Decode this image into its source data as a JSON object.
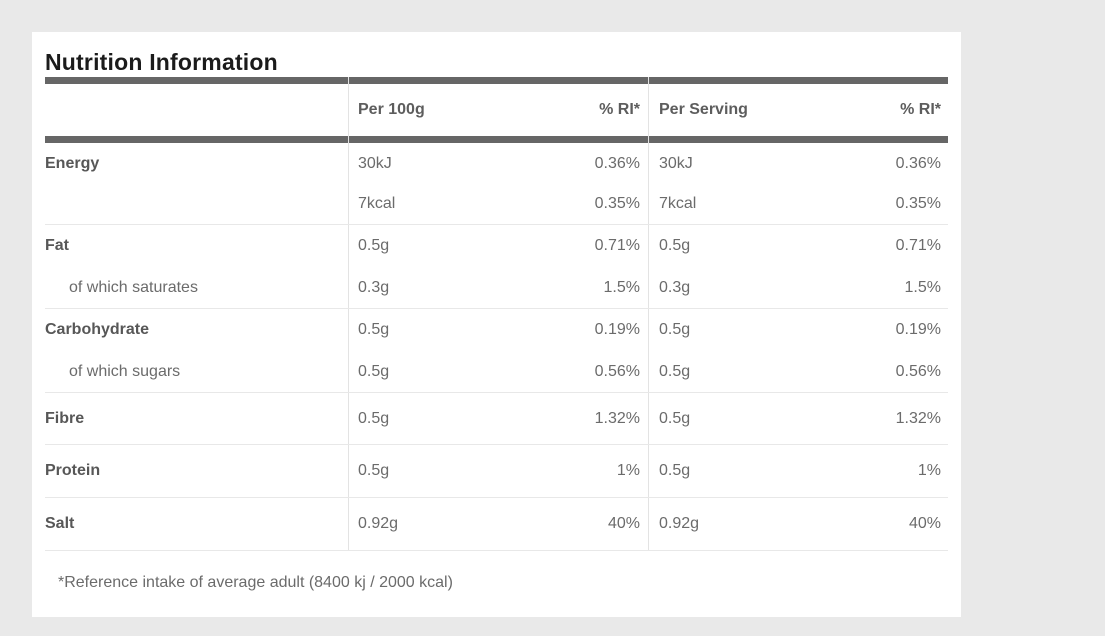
{
  "colors": {
    "page_background": "#e9e9e9",
    "card_background": "#ffffff",
    "divider_bar": "#666666",
    "row_border": "#e8e8e8",
    "title_text": "#1b1b1b",
    "label_text": "#575757",
    "value_text": "#6b6b6b"
  },
  "title": "Nutrition Information",
  "table": {
    "columns": [
      "Per 100g",
      "% RI*",
      "Per Serving",
      "% RI*"
    ],
    "rows": [
      {
        "label": "Energy",
        "per100g": "30kJ",
        "ri_100g": "0.36%",
        "per_serving": "30kJ",
        "ri_serving": "0.36%"
      },
      {
        "label": "",
        "per100g": "7kcal",
        "ri_100g": "0.35%",
        "per_serving": "7kcal",
        "ri_serving": "0.35%"
      },
      {
        "label": "Fat",
        "per100g": "0.5g",
        "ri_100g": "0.71%",
        "per_serving": "0.5g",
        "ri_serving": "0.71%"
      },
      {
        "label": "of which saturates",
        "per100g": "0.3g",
        "ri_100g": "1.5%",
        "per_serving": "0.3g",
        "ri_serving": "1.5%"
      },
      {
        "label": "Carbohydrate",
        "per100g": "0.5g",
        "ri_100g": "0.19%",
        "per_serving": "0.5g",
        "ri_serving": "0.19%"
      },
      {
        "label": "of which sugars",
        "per100g": "0.5g",
        "ri_100g": "0.56%",
        "per_serving": "0.5g",
        "ri_serving": "0.56%"
      },
      {
        "label": "Fibre",
        "per100g": "0.5g",
        "ri_100g": "1.32%",
        "per_serving": "0.5g",
        "ri_serving": "1.32%"
      },
      {
        "label": "Protein",
        "per100g": "0.5g",
        "ri_100g": "1%",
        "per_serving": "0.5g",
        "ri_serving": "1%"
      },
      {
        "label": "Salt",
        "per100g": "0.92g",
        "ri_100g": "40%",
        "per_serving": "0.92g",
        "ri_serving": "40%"
      }
    ]
  },
  "footnote": "*Reference intake of average adult (8400 kj / 2000 kcal)"
}
